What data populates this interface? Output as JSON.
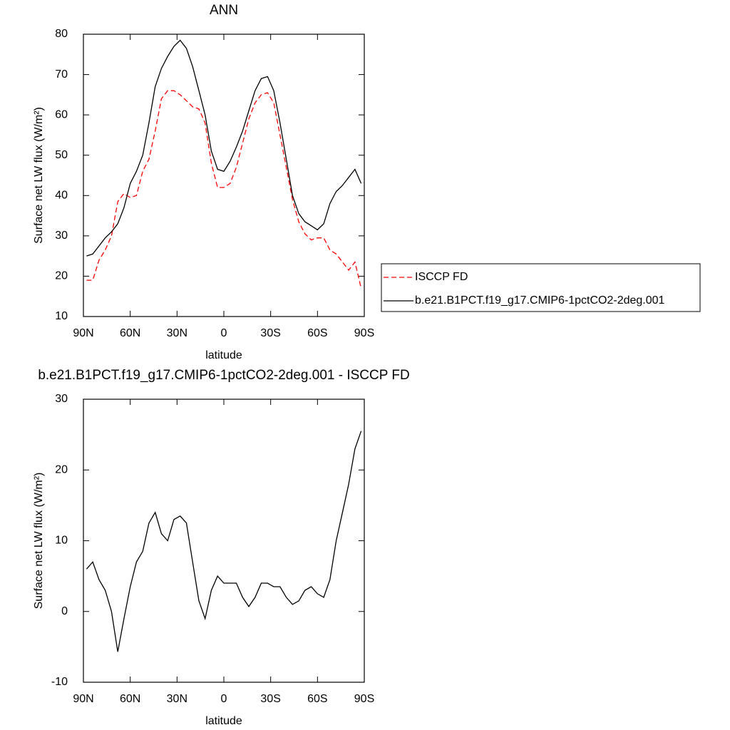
{
  "chart_data": [
    {
      "type": "line",
      "title": "ANN",
      "xlabel": "latitude",
      "ylabel": "Surface net LW flux (W/m²)",
      "x": [
        88,
        84,
        80,
        76,
        72,
        68,
        64,
        60,
        56,
        52,
        48,
        44,
        40,
        36,
        32,
        28,
        24,
        20,
        16,
        12,
        8,
        4,
        0,
        -4,
        -8,
        -12,
        -16,
        -20,
        -24,
        -28,
        -32,
        -36,
        -40,
        -44,
        -48,
        -52,
        -56,
        -60,
        -64,
        -68,
        -72,
        -76,
        -80,
        -84,
        -88
      ],
      "series": [
        {
          "name": "ISCCP FD",
          "color": "#ff0000",
          "line_style": "dashed",
          "values": [
            19,
            19,
            24,
            26.5,
            30,
            38.5,
            40.5,
            39.5,
            40,
            46,
            49,
            56,
            64,
            66,
            66,
            65,
            63.5,
            62,
            61.5,
            58,
            48,
            42,
            42,
            43,
            47,
            53,
            59,
            63,
            65,
            65.5,
            63,
            55,
            47,
            39,
            33.5,
            30.5,
            29,
            29.5,
            29.5,
            26.5,
            25.5,
            23.5,
            21.5,
            23.5,
            17
          ]
        },
        {
          "name": "b.e21.B1PCT.f19_g17.CMIP6-1pctCO2-2deg.001",
          "color": "#000000",
          "line_style": "solid",
          "values": [
            25,
            25.5,
            27.5,
            29.5,
            31,
            33,
            37,
            43,
            46,
            50,
            58,
            67,
            71.5,
            74.5,
            77,
            78.5,
            76.5,
            72,
            66,
            60,
            51,
            46.5,
            46,
            48.5,
            52,
            56,
            61,
            66,
            69,
            69.5,
            66,
            58,
            49,
            40,
            35.5,
            33.5,
            32.5,
            31.5,
            33,
            38,
            41,
            42.5,
            44.5,
            46.5,
            43
          ]
        }
      ],
      "xlim": [
        90,
        -90
      ],
      "xticks": [
        {
          "value": 90,
          "label": "90N"
        },
        {
          "value": 60,
          "label": "60N"
        },
        {
          "value": 30,
          "label": "30N"
        },
        0,
        {
          "value": -30,
          "label": "30S"
        },
        {
          "value": -60,
          "label": "60S"
        },
        {
          "value": -90,
          "label": "90S"
        }
      ],
      "ylim": [
        10,
        80
      ],
      "yticks": [
        10,
        20,
        30,
        40,
        50,
        60,
        70,
        80
      ],
      "legend": "right"
    },
    {
      "type": "line",
      "title": "b.e21.B1PCT.f19_g17.CMIP6-1pctCO2-2deg.001 - ISCCP FD",
      "xlabel": "latitude",
      "ylabel": "Surface net LW flux (W/m²)",
      "x": [
        88,
        84,
        80,
        76,
        72,
        68,
        64,
        60,
        56,
        52,
        48,
        44,
        40,
        36,
        32,
        28,
        24,
        20,
        16,
        12,
        8,
        4,
        0,
        -4,
        -8,
        -12,
        -16,
        -20,
        -24,
        -28,
        -32,
        -36,
        -40,
        -44,
        -48,
        -52,
        -56,
        -60,
        -64,
        -68,
        -72,
        -76,
        -80,
        -84,
        -88
      ],
      "series": [
        {
          "color": "#000000",
          "line_style": "solid",
          "values": [
            6,
            7,
            4.5,
            3,
            0,
            -5.7,
            -1,
            3.5,
            7,
            8.5,
            12.5,
            14,
            11,
            10,
            13,
            13.5,
            12.5,
            7,
            1.5,
            -1,
            3,
            5,
            4,
            4,
            4,
            2,
            0.7,
            2,
            4,
            4,
            3.5,
            3.5,
            2,
            1,
            1.5,
            3,
            3.5,
            2.5,
            2,
            4.5,
            10,
            14,
            18,
            23,
            25.5
          ]
        }
      ],
      "xlim": [
        90,
        -90
      ],
      "xticks": [
        {
          "value": 90,
          "label": "90N"
        },
        {
          "value": 60,
          "label": "60N"
        },
        {
          "value": 30,
          "label": "30N"
        },
        0,
        {
          "value": -30,
          "label": "30S"
        },
        {
          "value": -60,
          "label": "60S"
        },
        {
          "value": -90,
          "label": "90S"
        }
      ],
      "ylim": [
        -10,
        30
      ],
      "yticks": [
        -10,
        0,
        10,
        20,
        30
      ]
    }
  ]
}
